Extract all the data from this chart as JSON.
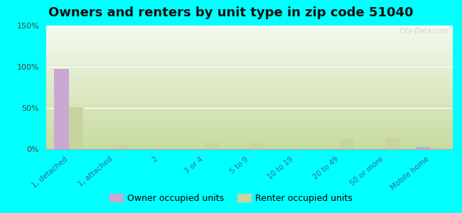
{
  "title": "Owners and renters by unit type in zip code 51040",
  "categories": [
    "1, detached",
    "1, attached",
    "2",
    "3 or 4",
    "5 to 9",
    "10 to 19",
    "20 to 49",
    "50 or more",
    "Mobile home"
  ],
  "owner_values": [
    97,
    0,
    0,
    0,
    0,
    0,
    0,
    0,
    3
  ],
  "renter_values": [
    51,
    5,
    1,
    8,
    7,
    0,
    12,
    14,
    3
  ],
  "owner_color": "#c9a8d4",
  "renter_color": "#c8d4a0",
  "background_color": "#00ffff",
  "ylim": [
    0,
    150
  ],
  "yticks": [
    0,
    50,
    100,
    150
  ],
  "ytick_labels": [
    "0%",
    "50%",
    "100%",
    "150%"
  ],
  "title_fontsize": 13,
  "legend_owner": "Owner occupied units",
  "legend_renter": "Renter occupied units",
  "watermark": "City-Data.com"
}
